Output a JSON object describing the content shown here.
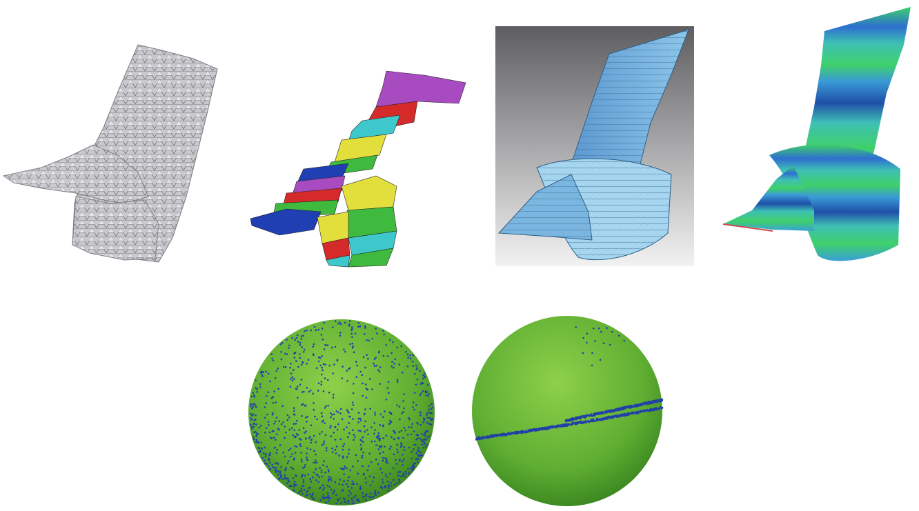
{
  "figure": {
    "panels": [
      {
        "id": "mesh",
        "kind": "noisy-triangle-mesh",
        "color": "#b9b9bd"
      },
      {
        "id": "segmentation",
        "kind": "segmented-mesh-strips",
        "palette": [
          "#1f3fb3",
          "#3dba3d",
          "#e0dc3a",
          "#d02424",
          "#3ec7c9",
          "#a746b8"
        ]
      },
      {
        "id": "ruled-surface",
        "kind": "fitted-developable-surface",
        "color": "#6aa8d8"
      },
      {
        "id": "error-map",
        "kind": "error-colored-surface",
        "palette": [
          "#2d6fd0",
          "#3ec0b5",
          "#3fd06a",
          "#1f4fa8"
        ]
      },
      {
        "id": "gauss-map-scattered",
        "kind": "gauss-sphere-points",
        "sphere_color": "#6ab83a",
        "point_color": "#2340a8"
      },
      {
        "id": "gauss-map-curve",
        "kind": "gauss-sphere-points",
        "sphere_color": "#6ab83a",
        "point_color": "#2340a8"
      }
    ]
  }
}
